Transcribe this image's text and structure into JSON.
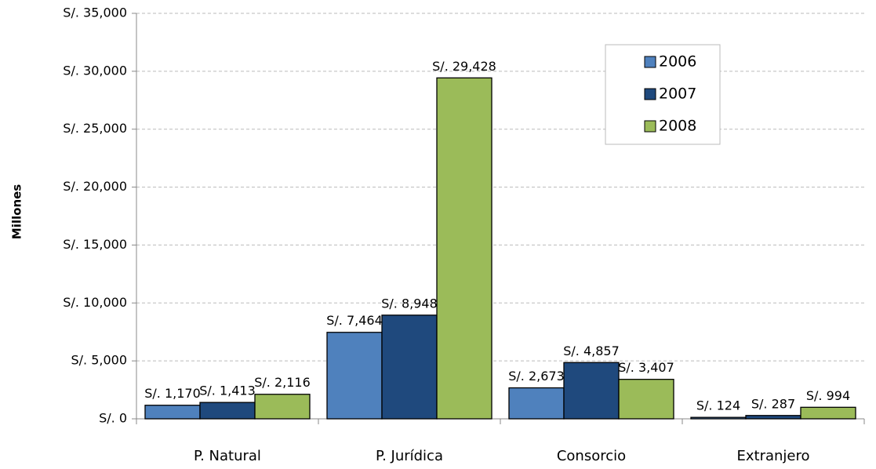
{
  "chart_data": {
    "type": "bar",
    "y_label": "Millones",
    "categories": [
      "P. Natural",
      "P. Jurídica",
      "Consorcio",
      "Extranjero"
    ],
    "series": [
      {
        "name": "2006",
        "color": "#4f81bd",
        "values": [
          1170,
          7464,
          2673,
          124
        ],
        "value_labels": [
          "S/. 1,170",
          "S/. 7,464",
          "S/. 2,673",
          "S/. 124"
        ]
      },
      {
        "name": "2007",
        "color": "#1f497d",
        "values": [
          1413,
          8948,
          4857,
          287
        ],
        "value_labels": [
          "S/. 1,413",
          "S/. 8,948",
          "S/. 4,857",
          "S/. 287"
        ]
      },
      {
        "name": "2008",
        "color": "#9bbb59",
        "values": [
          2116,
          29428,
          3407,
          994
        ],
        "value_labels": [
          "S/. 2,116",
          "S/. 29,428",
          "S/. 3,407",
          "S/. 994"
        ]
      }
    ],
    "ylim": [
      0,
      35000
    ],
    "yticks": [
      {
        "value": 0,
        "label": "S/. 0"
      },
      {
        "value": 5000,
        "label": "S/. 5,000"
      },
      {
        "value": 10000,
        "label": "S/. 10,000"
      },
      {
        "value": 15000,
        "label": "S/. 15,000"
      },
      {
        "value": 20000,
        "label": "S/. 20,000"
      },
      {
        "value": 25000,
        "label": "S/. 25,000"
      },
      {
        "value": 30000,
        "label": "S/. 30,000"
      },
      {
        "value": 35000,
        "label": "S/. 35,000"
      }
    ],
    "grid": true,
    "legend": "upper-right"
  }
}
